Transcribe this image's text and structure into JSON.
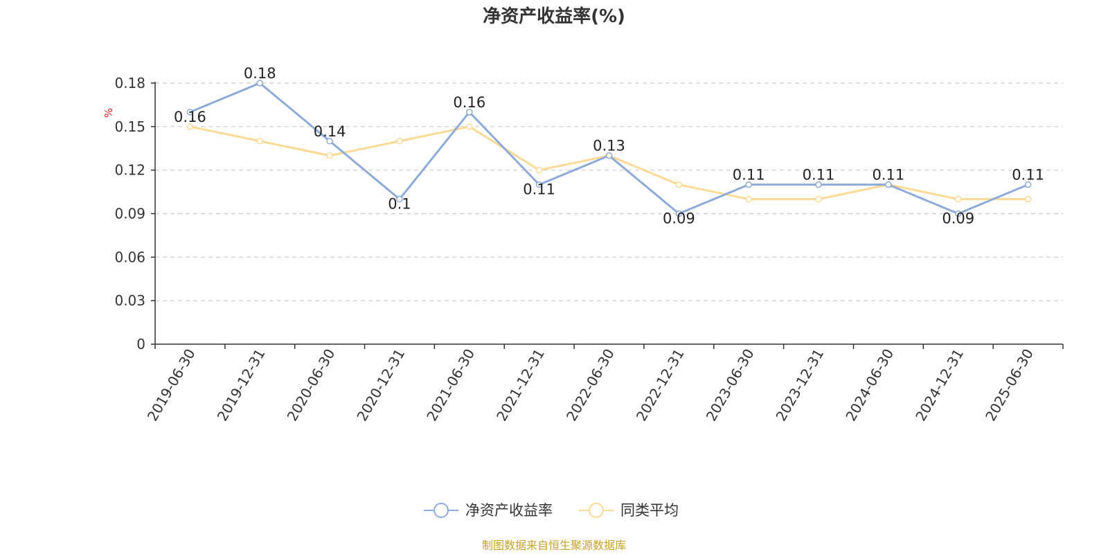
{
  "chart_data": {
    "type": "line",
    "title": "净资产收益率(%)",
    "y_unit": "%",
    "categories": [
      "2019-06-30",
      "2019-12-31",
      "2020-06-30",
      "2020-12-31",
      "2021-06-30",
      "2021-12-31",
      "2022-06-30",
      "2022-12-31",
      "2023-06-30",
      "2023-12-31",
      "2024-06-30",
      "2024-12-31",
      "2025-06-30"
    ],
    "ylim": [
      0,
      0.18
    ],
    "yticks": [
      "0",
      "0.03",
      "0.06",
      "0.09",
      "0.12",
      "0.15",
      "0.18"
    ],
    "grid": true,
    "legend_position": "bottom",
    "series": [
      {
        "name": "净资产收益率",
        "color": "#8eaad8",
        "values": [
          0.16,
          0.18,
          0.14,
          0.1,
          0.16,
          0.11,
          0.13,
          0.09,
          0.11,
          0.11,
          0.11,
          0.09,
          0.11
        ],
        "labels": [
          "0.16",
          "0.18",
          "0.14",
          "0.1",
          "0.16",
          "0.11",
          "0.13",
          "0.09",
          "0.11",
          "0.11",
          "0.11",
          "0.09",
          "0.11"
        ]
      },
      {
        "name": "同类平均",
        "color": "#fcd995",
        "values": [
          0.15,
          0.14,
          0.13,
          0.14,
          0.15,
          0.12,
          0.13,
          0.11,
          0.1,
          0.1,
          0.11,
          0.1,
          0.1
        ]
      }
    ]
  },
  "source_note": "制图数据来自恒生聚源数据库"
}
